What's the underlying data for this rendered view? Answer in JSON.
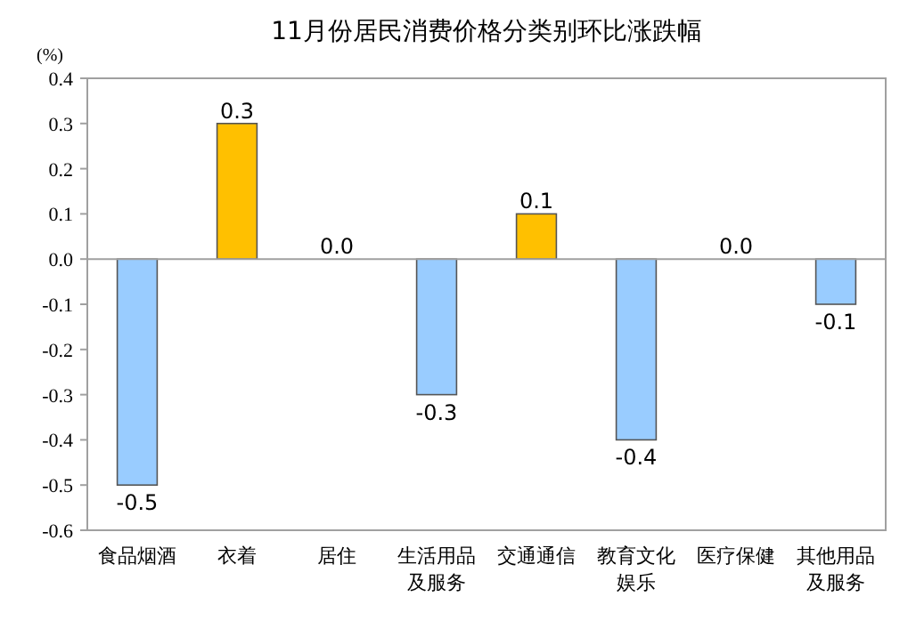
{
  "chart_data": {
    "type": "bar",
    "title": "11月份居民消费价格分类别环比涨跌幅",
    "ylabel": "(%)",
    "categories": [
      "食品烟酒",
      "衣着",
      "居住",
      "生活用品及服务",
      "交通通信",
      "教育文化娱乐",
      "医疗保健",
      "其他用品及服务"
    ],
    "values": [
      -0.5,
      0.3,
      0.0,
      -0.3,
      0.1,
      -0.4,
      0.0,
      -0.1
    ],
    "colors": [
      "#99ccff",
      "#ffc000",
      "#99ccff",
      "#99ccff",
      "#ffc000",
      "#99ccff",
      "#99ccff",
      "#99ccff"
    ],
    "value_labels": [
      "-0.5",
      "0.3",
      "0.0",
      "-0.3",
      "0.1",
      "-0.4",
      "0.0",
      "-0.1"
    ],
    "ylim": [
      -0.6,
      0.4
    ],
    "yticks": [
      {
        "value": 0.4,
        "label": "0.4"
      },
      {
        "value": 0.3,
        "label": "0.3"
      },
      {
        "value": 0.2,
        "label": "0.2"
      },
      {
        "value": 0.1,
        "label": "0.1"
      },
      {
        "value": 0.0,
        "label": "0.0"
      },
      {
        "value": -0.1,
        "label": "-0.1"
      },
      {
        "value": -0.2,
        "label": "-0.2"
      },
      {
        "value": -0.3,
        "label": "-0.3"
      },
      {
        "value": -0.4,
        "label": "-0.4"
      },
      {
        "value": -0.5,
        "label": "-0.5"
      },
      {
        "value": -0.6,
        "label": "-0.6"
      }
    ]
  }
}
